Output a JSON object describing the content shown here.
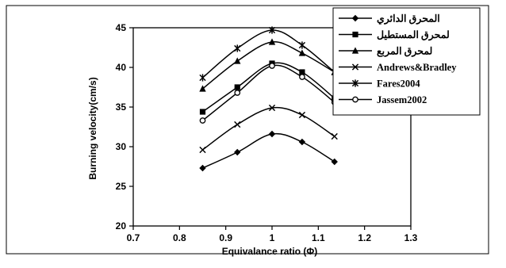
{
  "chart_data": {
    "type": "line",
    "title": "",
    "xlabel": "Equivalance ratio (Φ)",
    "ylabel": "Burning velocity(cm/s)",
    "xlim": [
      0.7,
      1.3
    ],
    "ylim": [
      20,
      45
    ],
    "xticks": [
      0.7,
      0.8,
      0.9,
      1,
      1.1,
      1.2,
      1.3
    ],
    "yticks": [
      20,
      25,
      30,
      35,
      40,
      45
    ],
    "xtick_labels": [
      "0.7",
      "0.8",
      "0.9",
      "1",
      "1.1",
      "1.2",
      "1.3"
    ],
    "ytick_labels": [
      "20",
      "25",
      "30",
      "35",
      "40",
      "45"
    ],
    "grid": false,
    "legend_position": "top-right",
    "series": [
      {
        "name": "المحرق الدائري",
        "marker": "diamond",
        "x": [
          0.85,
          0.925,
          1.0,
          1.065,
          1.135
        ],
        "y": [
          27.3,
          29.3,
          31.6,
          30.6,
          28.1
        ]
      },
      {
        "name": "لمحرق المستطيل",
        "marker": "square",
        "x": [
          0.85,
          0.925,
          1.0,
          1.065,
          1.135
        ],
        "y": [
          34.4,
          37.5,
          40.5,
          39.4,
          36.1
        ]
      },
      {
        "name": "لمحرق المربع",
        "marker": "triangle",
        "x": [
          0.85,
          0.925,
          1.0,
          1.065,
          1.135
        ],
        "y": [
          37.3,
          40.8,
          43.2,
          41.8,
          39.4
        ]
      },
      {
        "name": "Andrews&Bradley",
        "marker": "x",
        "x": [
          0.85,
          0.925,
          1.0,
          1.065,
          1.135
        ],
        "y": [
          29.6,
          32.8,
          34.9,
          34.0,
          31.3
        ]
      },
      {
        "name": "Fares2004",
        "marker": "star",
        "x": [
          0.85,
          0.925,
          1.0,
          1.065,
          1.135
        ],
        "y": [
          38.7,
          42.4,
          44.7,
          42.8,
          39.4
        ]
      },
      {
        "name": "Jassem2002",
        "marker": "circle",
        "x": [
          0.85,
          0.925,
          1.0,
          1.065,
          1.135
        ],
        "y": [
          33.3,
          36.8,
          40.2,
          38.8,
          35.6
        ]
      }
    ]
  }
}
